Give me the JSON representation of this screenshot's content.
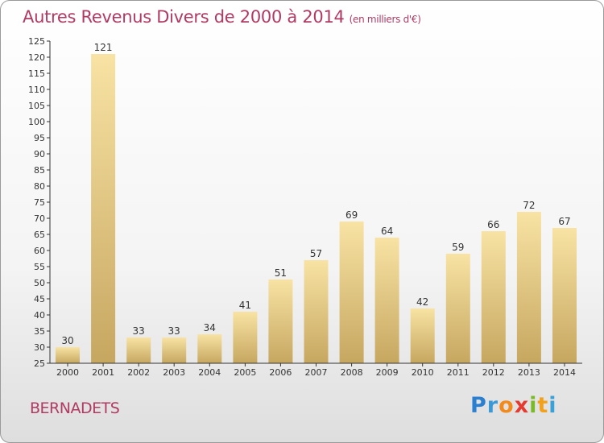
{
  "title": "Autres Revenus Divers de 2000 à 2014",
  "unit_note": "(en milliers d'€)",
  "commune": "BERNADETS",
  "logo": {
    "text": "Proxiti",
    "letters": [
      "P",
      "r",
      "o",
      "x",
      "i",
      "t",
      "i"
    ]
  },
  "colors": {
    "title": "#b03a63",
    "bar_light": "#f7df9c",
    "bar_dark": "#c8a862",
    "axis": "#333333"
  },
  "chart_data": {
    "type": "bar",
    "categories": [
      "2000",
      "2001",
      "2002",
      "2003",
      "2004",
      "2005",
      "2006",
      "2007",
      "2008",
      "2009",
      "2010",
      "2011",
      "2012",
      "2013",
      "2014"
    ],
    "values": [
      30,
      121,
      33,
      33,
      34,
      41,
      51,
      57,
      69,
      64,
      42,
      59,
      66,
      72,
      67
    ],
    "data_labels": [
      "30",
      "121",
      "33",
      "33",
      "34",
      "41",
      "51",
      "57",
      "69",
      "64",
      "42",
      "59",
      "66",
      "72",
      "67"
    ],
    "ylim": [
      25,
      125
    ],
    "yticks": [
      25,
      30,
      35,
      40,
      45,
      50,
      55,
      60,
      65,
      70,
      75,
      80,
      85,
      90,
      95,
      100,
      105,
      110,
      115,
      120,
      125
    ],
    "grid": false,
    "xlabel": "",
    "ylabel": ""
  }
}
